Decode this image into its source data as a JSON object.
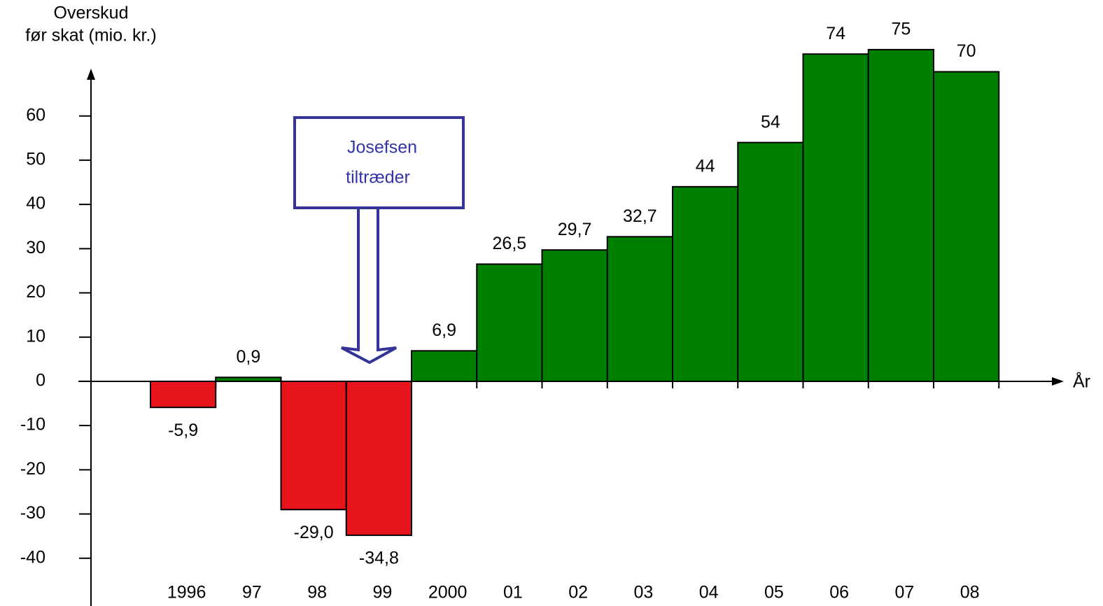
{
  "chart_data": {
    "type": "bar",
    "y_label": [
      "Overskud",
      "før skat (mio. kr.)"
    ],
    "x_label": "År",
    "annotation": [
      "Josefsen",
      "tiltræder"
    ],
    "categories": [
      "1996",
      "97",
      "98",
      "99",
      "2000",
      "01",
      "02",
      "03",
      "04",
      "05",
      "06",
      "07",
      "08"
    ],
    "values": [
      -5.9,
      0.9,
      -29.0,
      -34.8,
      6.9,
      26.5,
      29.7,
      32.7,
      44,
      54,
      74,
      75,
      70
    ],
    "value_labels": [
      "-5,9",
      "0,9",
      "-29,0",
      "-34,8",
      "6,9",
      "26,5",
      "29,7",
      "32,7",
      "44",
      "54",
      "74",
      "75",
      "70"
    ],
    "positive_color": "#008000",
    "negative_color": "#e8141c",
    "ylim": [
      -50.8,
      70.4
    ],
    "yticks": [
      -40,
      -30,
      -20,
      -10,
      0,
      10,
      20,
      30,
      40,
      50,
      60
    ]
  }
}
